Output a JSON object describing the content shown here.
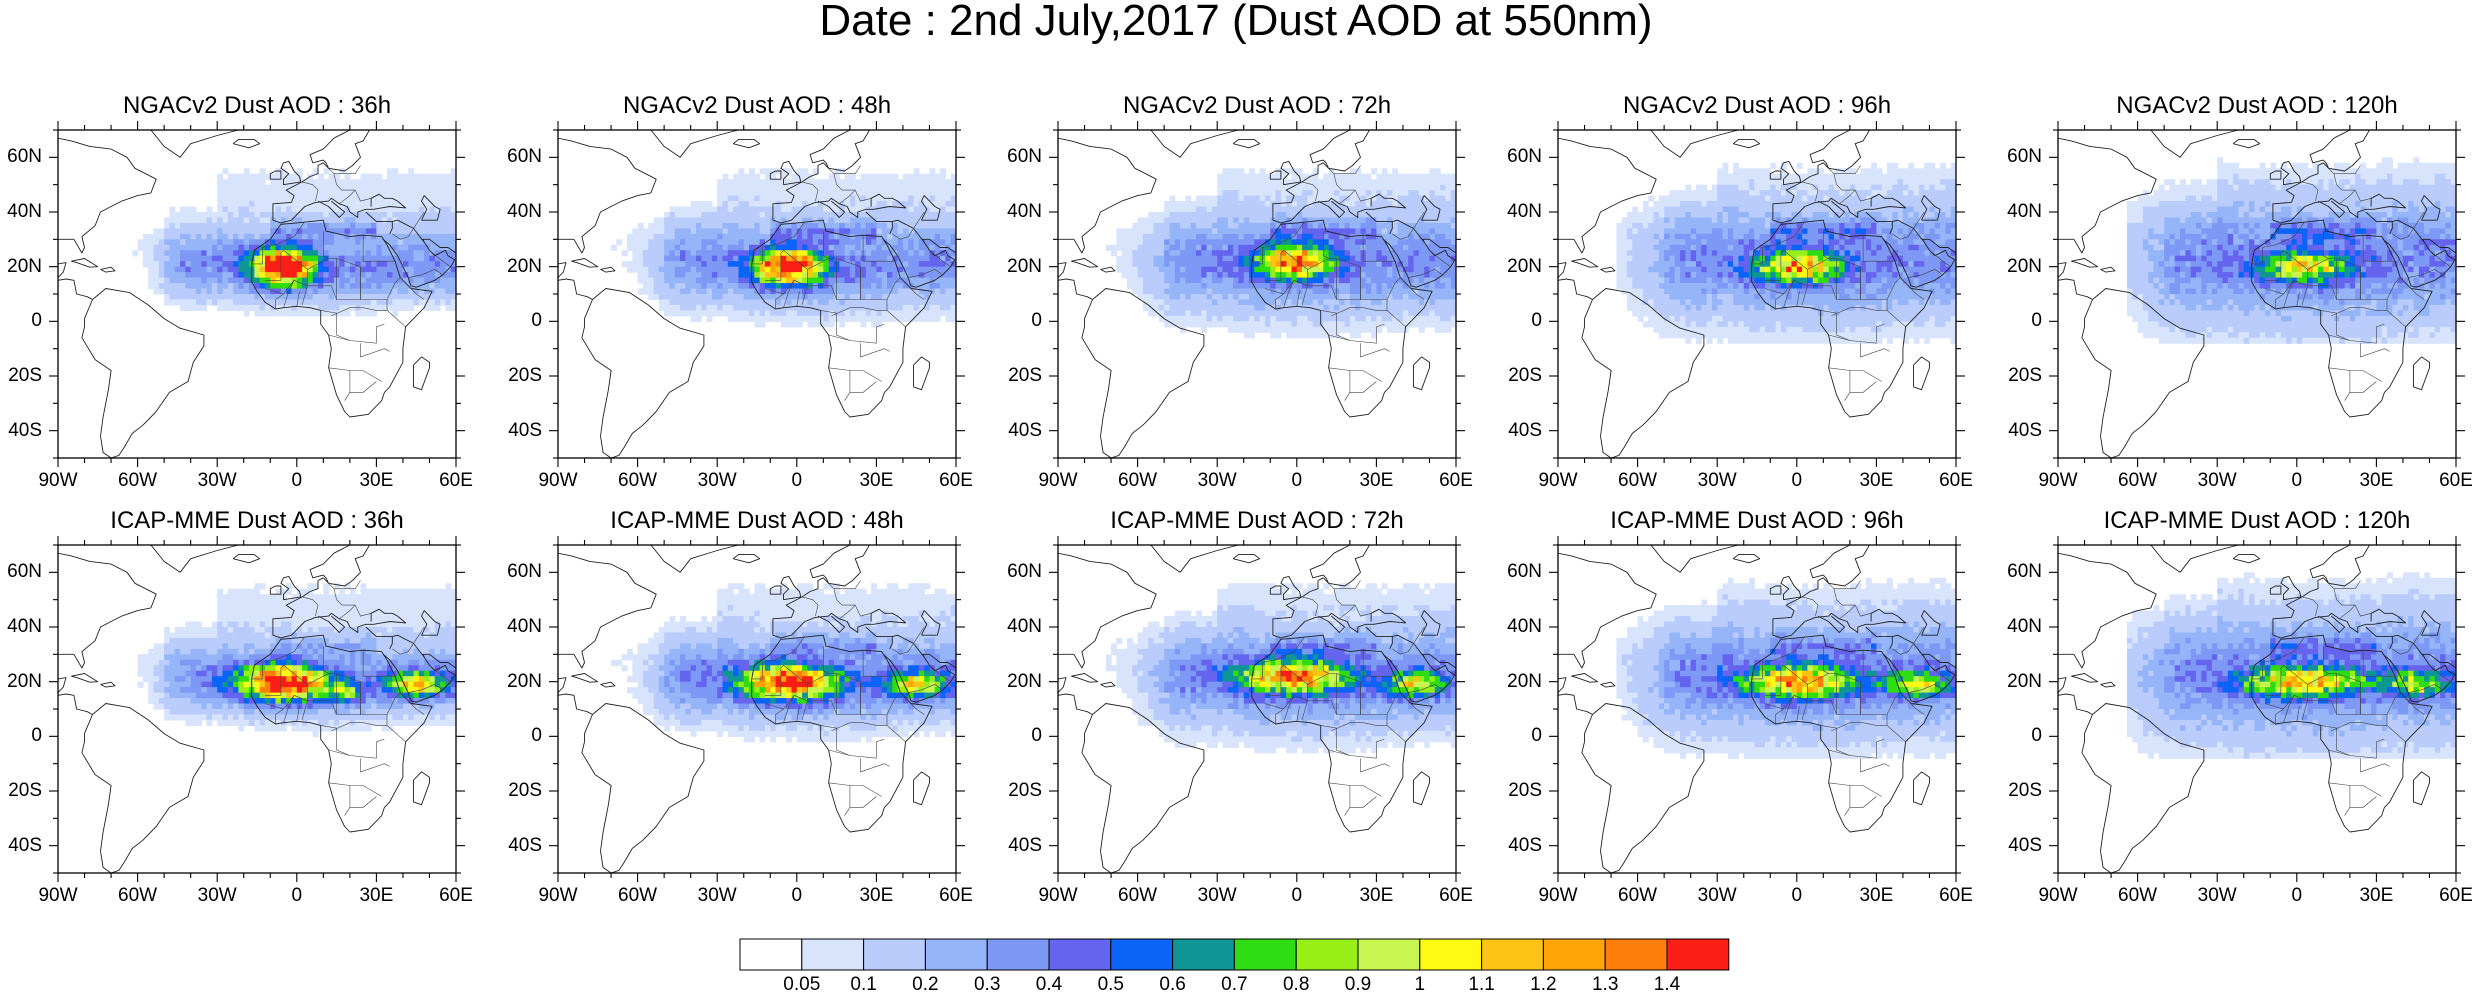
{
  "figure": {
    "title": "Date : 2nd July,2017 (Dust AOD at 550nm)"
  },
  "panels": [
    {
      "row": 0,
      "col": 0,
      "title": "NGACv2 Dust AOD : 36h",
      "model": "NGACv2",
      "lead_hour": 36
    },
    {
      "row": 0,
      "col": 1,
      "title": "NGACv2 Dust AOD : 48h",
      "model": "NGACv2",
      "lead_hour": 48
    },
    {
      "row": 0,
      "col": 2,
      "title": "NGACv2 Dust AOD : 72h",
      "model": "NGACv2",
      "lead_hour": 72
    },
    {
      "row": 0,
      "col": 3,
      "title": "NGACv2 Dust AOD : 96h",
      "model": "NGACv2",
      "lead_hour": 96
    },
    {
      "row": 0,
      "col": 4,
      "title": "NGACv2 Dust AOD : 120h",
      "model": "NGACv2",
      "lead_hour": 120
    },
    {
      "row": 1,
      "col": 0,
      "title": "ICAP-MME Dust AOD : 36h",
      "model": "ICAP-MME",
      "lead_hour": 36
    },
    {
      "row": 1,
      "col": 1,
      "title": "ICAP-MME Dust AOD : 48h",
      "model": "ICAP-MME",
      "lead_hour": 48
    },
    {
      "row": 1,
      "col": 2,
      "title": "ICAP-MME Dust AOD : 72h",
      "model": "ICAP-MME",
      "lead_hour": 72
    },
    {
      "row": 1,
      "col": 3,
      "title": "ICAP-MME Dust AOD : 96h",
      "model": "ICAP-MME",
      "lead_hour": 96
    },
    {
      "row": 1,
      "col": 4,
      "title": "ICAP-MME Dust AOD : 120h",
      "model": "ICAP-MME",
      "lead_hour": 120
    }
  ],
  "map": {
    "lon_range": [
      -90,
      60
    ],
    "lat_range": [
      -50,
      70
    ],
    "lat_ticks": [
      {
        "value": 60,
        "label": "60N"
      },
      {
        "value": 40,
        "label": "40N"
      },
      {
        "value": 20,
        "label": "20N"
      },
      {
        "value": 0,
        "label": "0"
      },
      {
        "value": -20,
        "label": "20S"
      },
      {
        "value": -40,
        "label": "40S"
      }
    ],
    "lon_ticks": [
      {
        "value": -90,
        "label": "90W"
      },
      {
        "value": -60,
        "label": "60W"
      },
      {
        "value": -30,
        "label": "30W"
      },
      {
        "value": 0,
        "label": "0"
      },
      {
        "value": 30,
        "label": "30E"
      },
      {
        "value": 60,
        "label": "60E"
      }
    ]
  },
  "colorbar": {
    "labels": [
      "0.05",
      "0.1",
      "0.2",
      "0.3",
      "0.4",
      "0.5",
      "0.6",
      "0.7",
      "0.8",
      "0.9",
      "1",
      "1.1",
      "1.2",
      "1.3",
      "1.4"
    ],
    "colors": [
      "#ffffff",
      "#d8e3fc",
      "#b9ccfb",
      "#95b5f8",
      "#7e98f5",
      "#6464ef",
      "#0a64f7",
      "#0e9696",
      "#2edc12",
      "#96f018",
      "#c8f550",
      "#fffa14",
      "#ffc314",
      "#ffa50a",
      "#ff7d0a",
      "#fa1e14"
    ]
  }
}
